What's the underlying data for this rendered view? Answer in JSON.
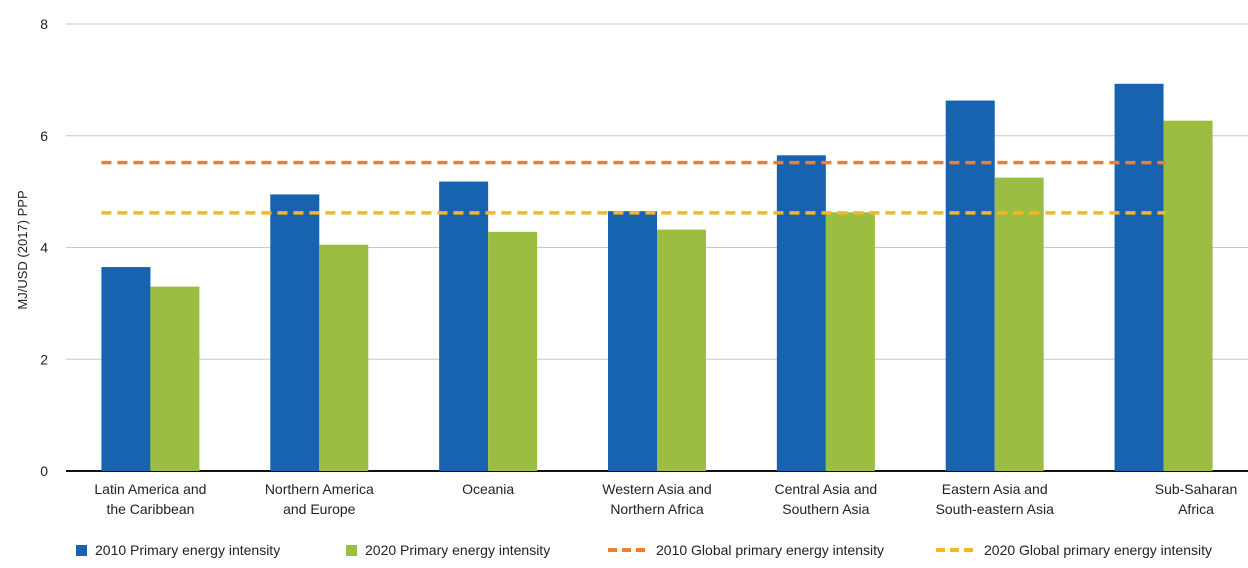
{
  "chart_data": {
    "type": "bar",
    "ylabel": "MJ/USD (2017) PPP",
    "ylim": [
      0,
      8
    ],
    "yticks": [
      0,
      2,
      4,
      6,
      8
    ],
    "grid": true,
    "legend_position": "bottom",
    "categories": [
      [
        "Latin America and",
        "the Caribbean"
      ],
      [
        "Northern America",
        "and Europe"
      ],
      [
        "Oceania"
      ],
      [
        "Western Asia and",
        "Northern Africa"
      ],
      [
        "Central Asia and",
        "Southern Asia"
      ],
      [
        "Eastern Asia and",
        "South-eastern Asia"
      ],
      [
        "Sub-Saharan",
        "Africa"
      ]
    ],
    "series": [
      {
        "name": "2010 Primary energy intensity",
        "color": "#1763b0",
        "values": [
          3.65,
          4.95,
          5.18,
          4.65,
          5.65,
          6.63,
          6.93
        ]
      },
      {
        "name": "2020 Primary energy intensity",
        "color": "#9bbd41",
        "values": [
          3.3,
          4.05,
          4.28,
          4.32,
          4.63,
          5.25,
          6.27
        ]
      }
    ],
    "reference_lines": [
      {
        "name": "2010 Global primary energy intensity",
        "color": "#ef7d32",
        "value": 5.52,
        "style": "dashed"
      },
      {
        "name": "2020 Global primary energy intensity",
        "color": "#f8b528",
        "value": 4.62,
        "style": "dashed"
      }
    ]
  },
  "legend": {
    "items": [
      "2010 Primary energy intensity",
      "2020 Primary energy intensity",
      "2010 Global primary energy intensity",
      "2020 Global primary energy intensity"
    ]
  }
}
